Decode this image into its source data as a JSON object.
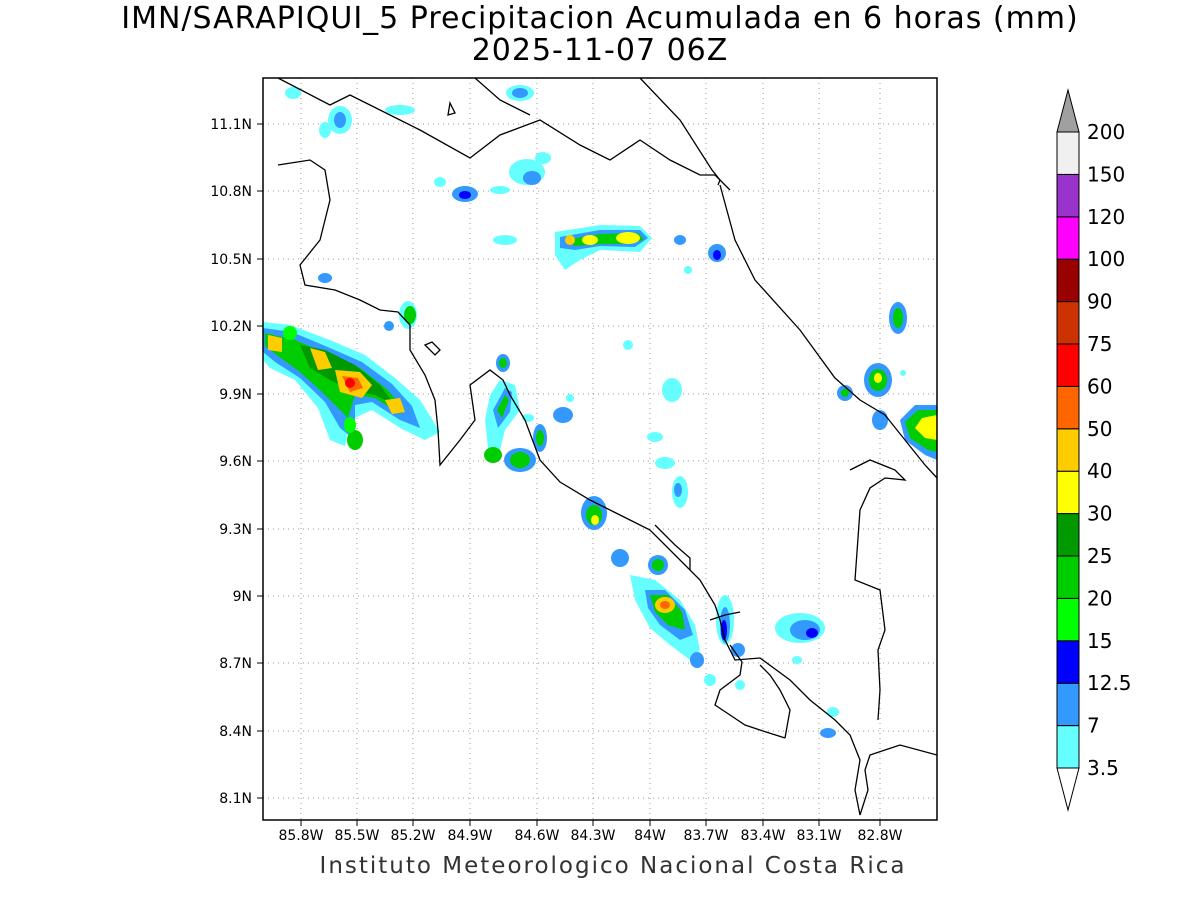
{
  "title": {
    "line1": "IMN/SARAPIQUI_5 Precipitacion Acumulada en 6 horas (mm)",
    "line2": "2025-11-07 06Z"
  },
  "footer": "Instituto Meteorologico Nacional Costa Rica",
  "axes": {
    "x_ticks": [
      "85.8W",
      "85.5W",
      "85.2W",
      "84.9W",
      "84.6W",
      "84.3W",
      "84W",
      "83.7W",
      "83.4W",
      "83.1W",
      "82.8W"
    ],
    "y_ticks": [
      "11.1N",
      "10.8N",
      "10.5N",
      "10.2N",
      "9.9N",
      "9.6N",
      "9.3N",
      "9N",
      "8.7N",
      "8.4N",
      "8.1N"
    ]
  },
  "colorbar": {
    "labels": [
      "3.5",
      "7",
      "12.5",
      "15",
      "20",
      "25",
      "30",
      "40",
      "50",
      "60",
      "75",
      "90",
      "100",
      "120",
      "150",
      "200"
    ],
    "colors": [
      "#66ffff",
      "#3399ff",
      "#0000ff",
      "#00ff00",
      "#00cc00",
      "#009900",
      "#ffff00",
      "#ffcc00",
      "#ff6600",
      "#ff0000",
      "#cc3300",
      "#990000",
      "#ff00ff",
      "#9933cc",
      "#f0f0f0",
      "#a0a0a0"
    ]
  }
}
